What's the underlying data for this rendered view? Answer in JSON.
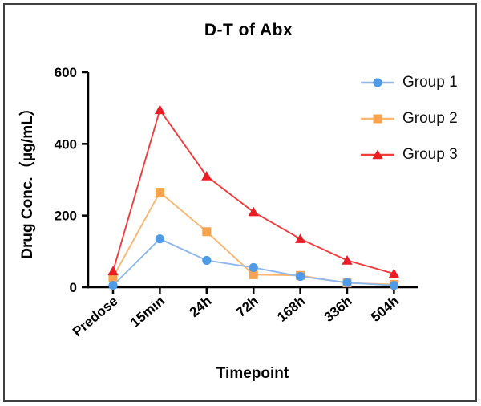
{
  "figure": {
    "background": "#ffffff",
    "border_color": "#3f3f3f",
    "axis_color": "#000000",
    "text_color": "#000000"
  },
  "chart_data": {
    "type": "line",
    "title": "D-T of Abx",
    "xlabel": "Timepoint",
    "ylabel": "Drug Conc.（μg/mL）",
    "categories": [
      "Predose",
      "15min",
      "24h",
      "72h",
      "168h",
      "336h",
      "504h"
    ],
    "yticks": [
      0,
      200,
      400,
      600
    ],
    "ylim": [
      0,
      600
    ],
    "grid": false,
    "legend_position": "top-right",
    "series": [
      {
        "name": "Group 1",
        "marker": "circle",
        "color": "#4F9BE8",
        "line_color": "#8FB8EF",
        "values": [
          5,
          135,
          75,
          55,
          30,
          13,
          5
        ]
      },
      {
        "name": "Group 2",
        "marker": "square",
        "color": "#F9A34F",
        "line_color": "#FBB671",
        "values": [
          28,
          265,
          155,
          35,
          33,
          12,
          8
        ]
      },
      {
        "name": "Group 3",
        "marker": "triangle",
        "color": "#EC1C24",
        "line_color": "#F23C3C",
        "values": [
          45,
          495,
          310,
          210,
          135,
          75,
          38
        ]
      }
    ]
  }
}
